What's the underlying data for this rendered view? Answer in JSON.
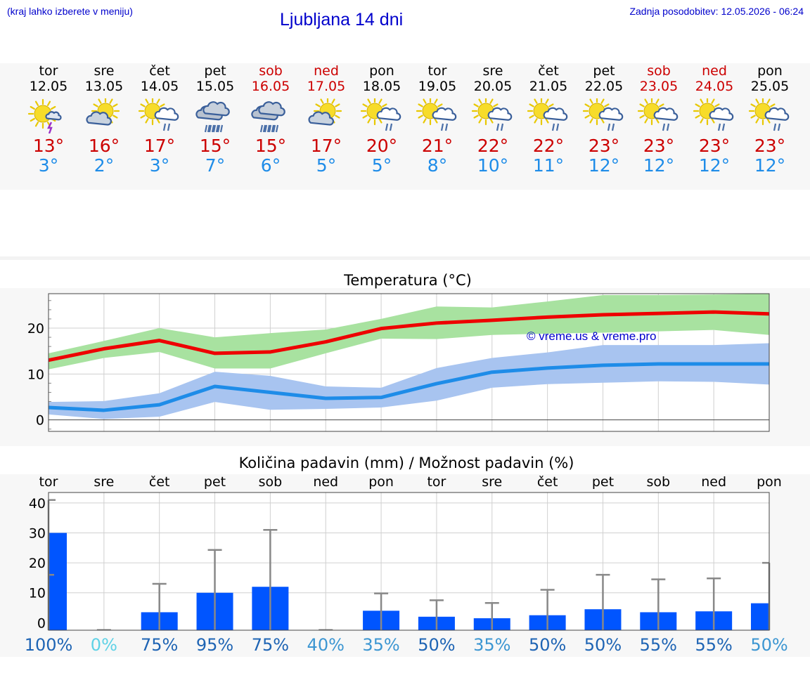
{
  "header": {
    "hint": "(kraj lahko izberete v meniju)",
    "title": "Ljubljana 14 dni",
    "updated": "Zadnja posodobitev: 12.05.2026 - 06:24"
  },
  "days": [
    {
      "name": "tor",
      "date": "12.05",
      "weekend": false,
      "icon": "sun-thunder-icon",
      "tmax": "13°",
      "tmin": "3°"
    },
    {
      "name": "sre",
      "date": "13.05",
      "weekend": false,
      "icon": "sun-cloud-icon",
      "tmax": "16°",
      "tmin": "2°"
    },
    {
      "name": "čet",
      "date": "14.05",
      "weekend": false,
      "icon": "sun-cloud-rain-icon",
      "tmax": "17°",
      "tmin": "3°"
    },
    {
      "name": "pet",
      "date": "15.05",
      "weekend": false,
      "icon": "cloud-rain-icon",
      "tmax": "15°",
      "tmin": "7°"
    },
    {
      "name": "sob",
      "date": "16.05",
      "weekend": true,
      "icon": "cloud-rain-icon",
      "tmax": "15°",
      "tmin": "6°"
    },
    {
      "name": "ned",
      "date": "17.05",
      "weekend": true,
      "icon": "sun-cloud-icon",
      "tmax": "17°",
      "tmin": "5°"
    },
    {
      "name": "pon",
      "date": "18.05",
      "weekend": false,
      "icon": "sun-cloud-rain-icon",
      "tmax": "20°",
      "tmin": "5°"
    },
    {
      "name": "tor",
      "date": "19.05",
      "weekend": false,
      "icon": "sun-cloud-rain-icon",
      "tmax": "21°",
      "tmin": "8°"
    },
    {
      "name": "sre",
      "date": "20.05",
      "weekend": false,
      "icon": "sun-cloud-rain-icon",
      "tmax": "22°",
      "tmin": "10°"
    },
    {
      "name": "čet",
      "date": "21.05",
      "weekend": false,
      "icon": "sun-cloud-rain-icon",
      "tmax": "22°",
      "tmin": "11°"
    },
    {
      "name": "pet",
      "date": "22.05",
      "weekend": false,
      "icon": "sun-cloud-rain-icon",
      "tmax": "23°",
      "tmin": "12°"
    },
    {
      "name": "sob",
      "date": "23.05",
      "weekend": true,
      "icon": "sun-cloud-rain-icon",
      "tmax": "23°",
      "tmin": "12°"
    },
    {
      "name": "ned",
      "date": "24.05",
      "weekend": true,
      "icon": "sun-cloud-rain-icon",
      "tmax": "23°",
      "tmin": "12°"
    },
    {
      "name": "pon",
      "date": "25.05",
      "weekend": false,
      "icon": "sun-cloud-rain-icon",
      "tmax": "23°",
      "tmin": "12°"
    }
  ],
  "colors": {
    "max_line": "#ee0000",
    "max_band": "#a8e2a0",
    "min_line": "#1e8ce8",
    "min_band": "#a8c4f0",
    "bar": "#0055ff",
    "whisker": "#888888",
    "weekend_text": "#cc0000",
    "link": "#0000cc"
  },
  "chart_data": [
    {
      "type": "line",
      "title": "Temperatura (°C)",
      "watermark": "© vreme.us & vreme.pro",
      "x": [
        "12.05",
        "13.05",
        "14.05",
        "15.05",
        "16.05",
        "17.05",
        "18.05",
        "19.05",
        "20.05",
        "21.05",
        "22.05",
        "23.05",
        "24.05",
        "25.05"
      ],
      "y_ticks": [
        0,
        10,
        20
      ],
      "ylim": [
        -2.5,
        27.5
      ],
      "grid": true,
      "series": [
        {
          "role": "max",
          "values": [
            13,
            15.5,
            17.3,
            14.5,
            14.8,
            17,
            19.9,
            21.1,
            21.7,
            22.4,
            22.9,
            23.2,
            23.5,
            23.1
          ],
          "low": [
            11,
            13.5,
            14.8,
            11.2,
            11.2,
            14.5,
            17.7,
            17.6,
            18.5,
            18.8,
            19,
            19.3,
            19.6,
            18.5
          ],
          "high": [
            14.5,
            17.2,
            20,
            18,
            18.9,
            19.7,
            22,
            24.7,
            24.5,
            25.8,
            27.2,
            27.2,
            27.3,
            27.5
          ]
        },
        {
          "role": "min",
          "values": [
            2.7,
            2.1,
            3.3,
            7.3,
            6,
            4.7,
            4.9,
            7.9,
            10.4,
            11.3,
            11.9,
            12.2,
            12.2,
            12.2
          ],
          "low": [
            1.2,
            0.2,
            0.7,
            3.9,
            2.2,
            2.4,
            2.7,
            4.2,
            7,
            7.8,
            8.1,
            8.4,
            8.3,
            7.7
          ],
          "high": [
            3.9,
            4.1,
            5.8,
            10.5,
            9.6,
            7.3,
            7,
            11.3,
            13.5,
            14.7,
            16.3,
            16.3,
            16.3,
            16.7
          ]
        }
      ]
    },
    {
      "type": "bar",
      "title": "Količina padavin (mm) / Možnost padavin (%)",
      "categories": [
        "tor",
        "sre",
        "čet",
        "pet",
        "sob",
        "ned",
        "pon",
        "tor",
        "sre",
        "čet",
        "pet",
        "sob",
        "ned",
        "pon"
      ],
      "values": [
        30,
        0,
        3.5,
        10,
        12,
        0,
        4,
        2,
        1.5,
        2.5,
        4.5,
        3.5,
        3.8,
        6.5
      ],
      "whisker_high": [
        41,
        0,
        13,
        24.3,
        31,
        0,
        9.8,
        7.5,
        6.6,
        11,
        16,
        14.5,
        14.8,
        20
      ],
      "probability": [
        "100%",
        "0%",
        "75%",
        "95%",
        "75%",
        "40%",
        "35%",
        "50%",
        "35%",
        "50%",
        "50%",
        "55%",
        "55%",
        "50%"
      ],
      "probability_colors": [
        "#1e64b4",
        "#5fd2e6",
        "#1e64b4",
        "#1e64b4",
        "#1e64b4",
        "#3c96d2",
        "#3c96d2",
        "#1e64b4",
        "#3c96d2",
        "#1e64b4",
        "#1e64b4",
        "#1e64b4",
        "#1e64b4",
        "#3c96d2"
      ],
      "y_ticks": [
        0,
        10,
        20,
        30,
        40
      ],
      "ylim": [
        -2.5,
        43.5
      ],
      "grid": true
    }
  ]
}
